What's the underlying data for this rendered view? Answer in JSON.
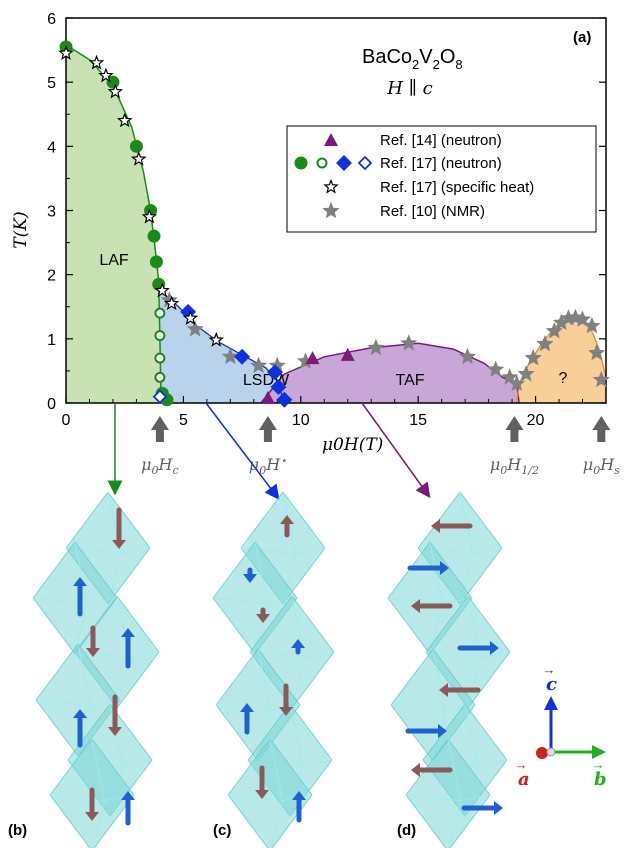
{
  "figure": {
    "panel_labels": [
      "(a)",
      "(b)",
      "(c)",
      "(d)"
    ],
    "compound": {
      "base": "BaCo",
      "sub1": "2",
      "mid": "V",
      "sub2": "2",
      "end": "O",
      "sub3": "8"
    },
    "field_direction": "H ∥ c",
    "phase_labels": {
      "laf": "LAF",
      "lsdw": "LSDW",
      "taf": "TAF",
      "unknown": "?"
    },
    "critical_fields": [
      {
        "symbol": "μ",
        "sub0": "0",
        "H": "H",
        "sub": "c",
        "x": 4.0
      },
      {
        "symbol": "μ",
        "sub0": "0",
        "H": "H",
        "sup": "⋆",
        "x": 8.6
      },
      {
        "symbol": "μ",
        "sub0": "0",
        "H": "H",
        "sub": "1/2",
        "x": 19.1
      },
      {
        "symbol": "μ",
        "sub0": "0",
        "H": "H",
        "sub": "s",
        "x": 22.8
      }
    ],
    "colors": {
      "laf_fill": "#c9e2b3",
      "lsdw_fill": "#b9d3ec",
      "taf_fill": "#c8a6d8",
      "unknown_fill": "#f9cf99",
      "green": "#1a8a1a",
      "blue": "#1030e0",
      "purple": "#7a1a7a",
      "gray": "#808080",
      "polyhedron": "#7fd6d6",
      "spin_up": "#1f5fd0",
      "spin_down": "#8a5a5a"
    },
    "axes_triad": {
      "c": "c",
      "a": "a",
      "b": "b"
    },
    "spin_panels": [
      {
        "label": "(b)",
        "phase": "LAF",
        "spins": [
          "down",
          "up",
          "down",
          "up",
          "down",
          "up",
          "down",
          "up"
        ]
      },
      {
        "label": "(c)",
        "phase": "LSDW",
        "spins": [
          "up-short",
          "down-tiny",
          "down-tiny",
          "up-tiny",
          "down",
          "up",
          "down",
          "up"
        ]
      },
      {
        "label": "(d)",
        "phase": "TAF",
        "spins": [
          "left",
          "right",
          "left",
          "right",
          "left",
          "right",
          "left",
          "right"
        ]
      }
    ]
  },
  "chart_data": {
    "type": "scatter",
    "title": "",
    "xlabel": "μ0H(T)",
    "ylabel": "T(K)",
    "xlim": [
      0,
      23
    ],
    "ylim": [
      0,
      6
    ],
    "x_ticks": [
      0,
      5,
      10,
      15,
      20
    ],
    "y_ticks": [
      0,
      1,
      2,
      3,
      4,
      5,
      6
    ],
    "legend": {
      "position": "top-right",
      "entries": [
        "Ref. [14] (neutron)",
        "Ref. [17] (neutron)",
        "Ref. [17] (specific heat)",
        "Ref. [10] (NMR)"
      ]
    },
    "series": [
      {
        "name": "Ref. [14] (neutron)",
        "marker": "triangle",
        "color": "#7a1a7a",
        "points": [
          [
            8.6,
            0.08
          ],
          [
            10.5,
            0.7
          ],
          [
            12,
            0.75
          ]
        ]
      },
      {
        "name": "Ref. [17] (neutron)",
        "marker": "circle-filled",
        "color": "#1a8a1a",
        "points": [
          [
            0,
            5.55
          ],
          [
            2,
            5.0
          ],
          [
            3,
            4.0
          ],
          [
            3.6,
            3.0
          ],
          [
            3.75,
            2.6
          ],
          [
            3.85,
            2.2
          ],
          [
            3.95,
            1.85
          ],
          [
            4.1,
            0.15
          ],
          [
            4.3,
            0.05
          ]
        ]
      },
      {
        "name": "Ref. [17] (neutron)",
        "marker": "circle-open",
        "color": "#1a8a1a",
        "points": [
          [
            4.0,
            1.4
          ],
          [
            4.0,
            1.05
          ],
          [
            4.0,
            0.7
          ],
          [
            4.0,
            0.4
          ]
        ]
      },
      {
        "name": "Ref. [17] (neutron)",
        "marker": "diamond-filled",
        "color": "#1030e0",
        "points": [
          [
            5.2,
            1.42
          ],
          [
            7.5,
            0.72
          ],
          [
            8.9,
            0.48
          ],
          [
            9.05,
            0.25
          ],
          [
            9.3,
            0.05
          ]
        ]
      },
      {
        "name": "Ref. [17] (neutron)",
        "marker": "diamond-open",
        "color": "#1030e0",
        "points": [
          [
            4.0,
            0.1
          ]
        ]
      },
      {
        "name": "Ref. [17] (specific heat)",
        "marker": "star-open",
        "color": "#000000",
        "points": [
          [
            0,
            5.45
          ],
          [
            1.3,
            5.3
          ],
          [
            1.7,
            5.1
          ],
          [
            2.1,
            4.85
          ],
          [
            2.5,
            4.4
          ],
          [
            3.1,
            3.8
          ],
          [
            3.55,
            2.9
          ],
          [
            4.1,
            1.75
          ],
          [
            4.5,
            1.55
          ],
          [
            5.3,
            1.32
          ],
          [
            6.4,
            0.98
          ]
        ]
      },
      {
        "name": "Ref. [10] (NMR)",
        "marker": "star-filled",
        "color": "#808080",
        "points": [
          [
            4.4,
            1.6
          ],
          [
            5.5,
            1.15
          ],
          [
            7.0,
            0.72
          ],
          [
            8.2,
            0.58
          ],
          [
            9.0,
            0.58
          ],
          [
            10.2,
            0.65
          ],
          [
            13.2,
            0.86
          ],
          [
            14.6,
            0.93
          ],
          [
            17.1,
            0.72
          ],
          [
            18.3,
            0.52
          ],
          [
            18.9,
            0.4
          ],
          [
            19.2,
            0.3
          ],
          [
            19.6,
            0.45
          ],
          [
            19.9,
            0.7
          ],
          [
            20.4,
            0.92
          ],
          [
            20.8,
            1.12
          ],
          [
            21.1,
            1.25
          ],
          [
            21.4,
            1.32
          ],
          [
            21.7,
            1.33
          ],
          [
            22.0,
            1.3
          ],
          [
            22.4,
            1.2
          ],
          [
            22.6,
            0.78
          ],
          [
            22.8,
            0.36
          ]
        ]
      }
    ],
    "boundaries": {
      "laf": [
        [
          0,
          5.58
        ],
        [
          1,
          5.35
        ],
        [
          2,
          4.95
        ],
        [
          2.8,
          4.3
        ],
        [
          3.3,
          3.6
        ],
        [
          3.6,
          3.0
        ],
        [
          3.8,
          2.4
        ],
        [
          3.95,
          1.9
        ],
        [
          4.0,
          1.0
        ],
        [
          4.05,
          0
        ]
      ],
      "lsdw": [
        [
          4.0,
          1.75
        ],
        [
          4.8,
          1.5
        ],
        [
          5.5,
          1.22
        ],
        [
          6.5,
          0.95
        ],
        [
          7.5,
          0.75
        ],
        [
          8.5,
          0.55
        ],
        [
          9.0,
          0.35
        ],
        [
          9.3,
          0
        ]
      ],
      "taf": [
        [
          8.3,
          0
        ],
        [
          9.3,
          0.45
        ],
        [
          11,
          0.72
        ],
        [
          13,
          0.86
        ],
        [
          15,
          0.93
        ],
        [
          16.5,
          0.84
        ],
        [
          17.8,
          0.62
        ],
        [
          18.6,
          0.4
        ],
        [
          19.2,
          0.3
        ],
        [
          19.3,
          0
        ]
      ],
      "unknown": [
        [
          19.2,
          0
        ],
        [
          19.3,
          0.3
        ],
        [
          19.7,
          0.6
        ],
        [
          20.3,
          0.95
        ],
        [
          21,
          1.25
        ],
        [
          21.7,
          1.33
        ],
        [
          22.3,
          1.2
        ],
        [
          22.7,
          0.85
        ],
        [
          23,
          0.4
        ],
        [
          23,
          0
        ]
      ]
    }
  }
}
